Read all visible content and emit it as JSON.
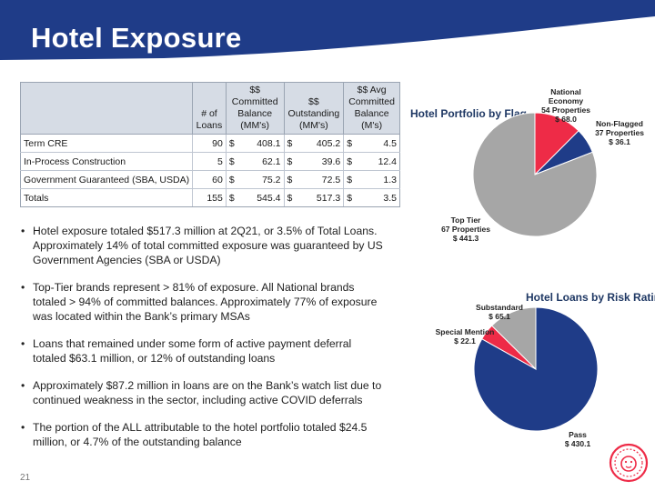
{
  "header": {
    "title": "Hotel Exposure"
  },
  "table": {
    "headers": [
      "",
      "# of Loans",
      "$$ Committed Balance (MM's)",
      "$$ Outstanding (MM's)",
      "$$ Avg Committed Balance (M's)"
    ],
    "rows": [
      {
        "name": "Term CRE",
        "loans": "90",
        "cur1": "$",
        "committed": "408.1",
        "cur2": "$",
        "outstanding": "405.2",
        "cur3": "$",
        "avg": "4.5"
      },
      {
        "name": "In-Process Construction",
        "loans": "5",
        "cur1": "$",
        "committed": "62.1",
        "cur2": "$",
        "outstanding": "39.6",
        "cur3": "$",
        "avg": "12.4"
      },
      {
        "name": "Government Guaranteed (SBA, USDA)",
        "loans": "60",
        "cur1": "$",
        "committed": "75.2",
        "cur2": "$",
        "outstanding": "72.5",
        "cur3": "$",
        "avg": "1.3"
      }
    ],
    "totals": {
      "name": "Totals",
      "loans": "155",
      "cur1": "$",
      "committed": "545.4",
      "cur2": "$",
      "outstanding": "517.3",
      "cur3": "$",
      "avg": "3.5"
    }
  },
  "bullets": [
    "Hotel exposure totaled $517.3 million at 2Q21, or 3.5% of Total Loans. Approximately 14% of total committed exposure was guaranteed by US Government Agencies (SBA or USDA)",
    "Top-Tier brands represent > 81% of exposure.  All National brands totaled > 94% of committed balances.  Approximately 77% of exposure was located within the Bank’s primary MSAs",
    "Loans that remained under some form of active payment deferral totaled $63.1 million, or 12% of outstanding loans",
    "Approximately $87.2 million in loans are on the Bank’s watch list due to continued weakness in the sector, including active COVID deferrals",
    "The portion of the ALL attributable to the hotel portfolio totaled $24.5 million, or 4.7% of the outstanding balance"
  ],
  "chart_data": [
    {
      "type": "pie",
      "title": "Hotel Portfolio by Flag",
      "slices": [
        {
          "label": "National Economy 54 Properties",
          "value": 68.0,
          "value_label": "$ 68.0",
          "color": "#ee2b47"
        },
        {
          "label": "Non-Flagged 37 Properties",
          "value": 36.1,
          "value_label": "$ 36.1",
          "color": "#1f3c88"
        },
        {
          "label": "Top Tier 67 Properties",
          "value": 441.3,
          "value_label": "$ 441.3",
          "color": "#a6a6a6"
        }
      ]
    },
    {
      "type": "pie",
      "title": "Hotel Loans by Risk Rating",
      "slices": [
        {
          "label": "Pass",
          "value": 430.1,
          "value_label": "$ 430.1",
          "color": "#1f3c88"
        },
        {
          "label": "Special Mention",
          "value": 22.1,
          "value_label": "$ 22.1",
          "color": "#ee2b47"
        },
        {
          "label": "Substandard",
          "value": 65.1,
          "value_label": "$ 65.1",
          "color": "#a6a6a6"
        }
      ]
    }
  ],
  "labels": {
    "flag": {
      "national": [
        "National",
        "Economy",
        "54 Properties",
        "$ 68.0"
      ],
      "nonflagged": [
        "Non-Flagged",
        "37 Properties",
        "$ 36.1"
      ],
      "toptier": [
        "Top Tier",
        "67 Properties",
        "$ 441.3"
      ]
    },
    "risk": {
      "pass": [
        "Pass",
        "$ 430.1"
      ],
      "special": [
        "Special Mention",
        "$ 22.1"
      ],
      "substandard": [
        "Substandard",
        "$ 65.1"
      ]
    }
  },
  "footer": {
    "page_number": "21"
  },
  "colors": {
    "header": "#1f3c88",
    "accent": "#ee2b47",
    "gray": "#a6a6a6"
  }
}
